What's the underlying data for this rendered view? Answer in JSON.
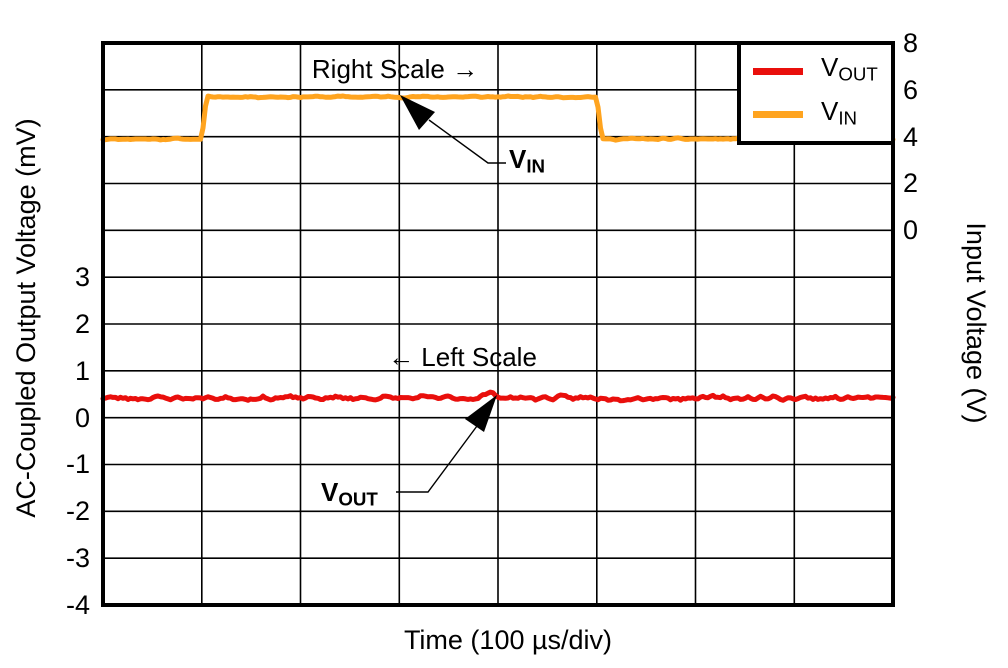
{
  "figure": {
    "background": "#ffffff"
  },
  "axes": {
    "left": {
      "title": "AC-Coupled Output Voltage (mV)",
      "ticks": [
        "3",
        "2",
        "1",
        "0",
        "-1",
        "-2",
        "-3",
        "-4"
      ]
    },
    "right": {
      "title": "Input Voltage (V)",
      "ticks": [
        "8",
        "6",
        "4",
        "2",
        "0"
      ]
    },
    "x": {
      "title": "Time (100 µs/div)"
    }
  },
  "legend": {
    "items": [
      {
        "main": "V",
        "sub": "OUT",
        "color": "#e90f0c"
      },
      {
        "main": "V",
        "sub": "IN",
        "color": "#ffa41f"
      }
    ]
  },
  "annotations": {
    "right_scale": "Right Scale →",
    "left_scale": "← Left Scale",
    "vin_label": {
      "main": "V",
      "sub": "IN"
    },
    "vout_label": {
      "main": "V",
      "sub": "OUT"
    }
  },
  "chart_data": {
    "type": "line",
    "title": "",
    "xlabel": "Time (100 µs/div)",
    "x_divisions": 8,
    "x_range_div": [
      0,
      8
    ],
    "grid": true,
    "legend_position": "top-right",
    "left_axis": {
      "label": "AC-Coupled Output Voltage (mV)",
      "mv_per_div": 1,
      "range_mv": [
        -4,
        8
      ],
      "labeled_ticks_mv": [
        3,
        2,
        1,
        0,
        -1,
        -2,
        -3,
        -4
      ]
    },
    "right_axis": {
      "label": "Input Voltage (V)",
      "v_per_div": 2,
      "top_value_v": 8,
      "labeled_ticks_v": [
        8,
        6,
        4,
        2,
        0
      ]
    },
    "series": [
      {
        "name": "VOUT",
        "axis": "left",
        "color": "#e90f0c",
        "x_div": [
          0,
          8
        ],
        "values": [
          0.42,
          0.42
        ],
        "noise_amp": 0.07,
        "bump": {
          "t": 3.93,
          "amp": 0.1,
          "width": 0.09
        },
        "description": "AC-coupled output voltage, flat at about 0.4 mV with small noise"
      },
      {
        "name": "VIN",
        "axis": "right",
        "color": "#ffa41f",
        "x_div": [
          0,
          1,
          1.05,
          5,
          5.05,
          8
        ],
        "values": [
          3.9,
          3.9,
          5.7,
          5.7,
          3.9,
          3.9
        ],
        "noise_amp": 0.055,
        "bump": null,
        "description": "Input voltage step from ~3.9 V up to ~5.7 V at division 1, back down at division 5"
      }
    ]
  }
}
